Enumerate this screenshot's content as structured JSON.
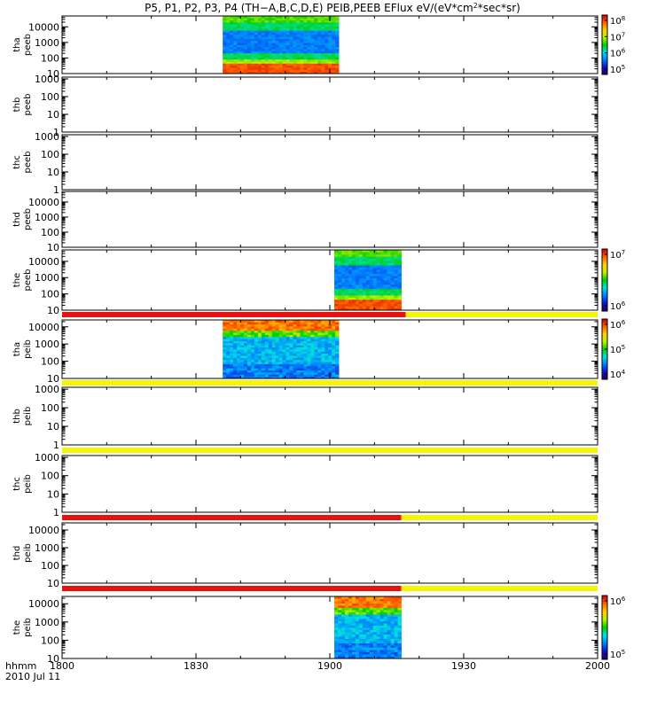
{
  "title_parts": [
    "P5, P1, P2, P3, P4 (TH−A,B,C,D,E) PEIB,PEEB EFlux eV/(eV*cm",
    "2",
    "*sec*sr)"
  ],
  "x_axis": {
    "type": "time",
    "range": [
      "1800",
      "2000"
    ],
    "tick_labels": [
      "1800",
      "1830",
      "1900",
      "1930",
      "2000"
    ],
    "label_top": "hhmm",
    "label_bottom": "2010 Jul 11"
  },
  "colors": {
    "bar_red": "#e81010",
    "bar_yellow": "#f5f500",
    "background": "#ffffff",
    "axis": "#000000"
  },
  "colorbar_stops": [
    "#2a0050",
    "#1010d0",
    "#0080ff",
    "#00e0e0",
    "#00d000",
    "#c0f000",
    "#ffd000",
    "#ff6000",
    "#d00000"
  ],
  "chart_data": [
    {
      "type": "heatmap",
      "name": "tha-peeb",
      "ylabel_lines": [
        "tha",
        "peeb"
      ],
      "ytick_labels": [
        "10000",
        "1000",
        "100",
        "10"
      ],
      "ylim_log": [
        1,
        4.7
      ],
      "y_scale": "log",
      "data_intervals": [
        [
          "1836",
          "1902"
        ]
      ],
      "colorbar": {
        "ticks": [
          {
            "base": "10",
            "exp": "8"
          },
          {
            "base": "10",
            "exp": "7"
          },
          {
            "base": "10",
            "exp": "6"
          },
          {
            "base": "10",
            "exp": "5"
          }
        ]
      }
    },
    {
      "type": "heatmap",
      "name": "thb-peeb",
      "ylabel_lines": [
        "thb",
        "peeb"
      ],
      "ytick_labels": [
        "1000",
        "100",
        "10",
        "1"
      ],
      "ylim_log": [
        0,
        3.1
      ],
      "y_scale": "log",
      "data_intervals": []
    },
    {
      "type": "heatmap",
      "name": "thc-peeb",
      "ylabel_lines": [
        "thc",
        "peeb"
      ],
      "ytick_labels": [
        "1000",
        "100",
        "10",
        "1"
      ],
      "ylim_log": [
        0,
        3.1
      ],
      "y_scale": "log",
      "data_intervals": []
    },
    {
      "type": "heatmap",
      "name": "thd-peeb",
      "ylabel_lines": [
        "thd",
        "peeb"
      ],
      "ytick_labels": [
        "10000",
        "1000",
        "100",
        "10"
      ],
      "ylim_log": [
        1,
        4.7
      ],
      "y_scale": "log",
      "data_intervals": []
    },
    {
      "type": "heatmap",
      "name": "the-peeb",
      "ylabel_lines": [
        "the",
        "peeb"
      ],
      "ytick_labels": [
        "10000",
        "1000",
        "100",
        "10"
      ],
      "ylim_log": [
        1,
        4.7
      ],
      "y_scale": "log",
      "data_intervals": [
        [
          "1901",
          "1916"
        ]
      ],
      "colorbar": {
        "ticks": [
          {
            "base": "10",
            "exp": "7"
          },
          {
            "base": "10",
            "exp": "6"
          }
        ]
      },
      "bar_segments": [
        {
          "from": "1800",
          "to": "1917",
          "color": "red"
        },
        {
          "from": "1917",
          "to": "2000",
          "color": "yellow"
        }
      ]
    },
    {
      "type": "heatmap",
      "name": "tha-peib",
      "ylabel_lines": [
        "tha",
        "peib"
      ],
      "ytick_labels": [
        "10000",
        "1000",
        "100",
        "10"
      ],
      "ylim_log": [
        1,
        4.4
      ],
      "y_scale": "log",
      "data_intervals": [
        [
          "1836",
          "1902"
        ]
      ],
      "colorbar": {
        "ticks": [
          {
            "base": "10",
            "exp": "6"
          },
          {
            "base": "10",
            "exp": "5"
          },
          {
            "base": "10",
            "exp": "4"
          }
        ]
      },
      "bar_segments": [
        {
          "from": "1800",
          "to": "2000",
          "color": "yellow"
        }
      ]
    },
    {
      "type": "heatmap",
      "name": "thb-peib",
      "ylabel_lines": [
        "thb",
        "peib"
      ],
      "ytick_labels": [
        "1000",
        "100",
        "10",
        "1"
      ],
      "ylim_log": [
        0,
        3.1
      ],
      "y_scale": "log",
      "data_intervals": [],
      "bar_segments": [
        {
          "from": "1800",
          "to": "2000",
          "color": "yellow"
        }
      ]
    },
    {
      "type": "heatmap",
      "name": "thc-peib",
      "ylabel_lines": [
        "thc",
        "peib"
      ],
      "ytick_labels": [
        "1000",
        "100",
        "10",
        "1"
      ],
      "ylim_log": [
        0,
        3.1
      ],
      "y_scale": "log",
      "data_intervals": [],
      "bar_segments": [
        {
          "from": "1800",
          "to": "1916",
          "color": "red"
        },
        {
          "from": "1916",
          "to": "2000",
          "color": "yellow"
        }
      ]
    },
    {
      "type": "heatmap",
      "name": "thd-peib",
      "ylabel_lines": [
        "thd",
        "peib"
      ],
      "ytick_labels": [
        "10000",
        "1000",
        "100",
        "10"
      ],
      "ylim_log": [
        1,
        4.4
      ],
      "y_scale": "log",
      "data_intervals": [],
      "bar_segments": [
        {
          "from": "1800",
          "to": "1916",
          "color": "red"
        },
        {
          "from": "1916",
          "to": "2000",
          "color": "yellow"
        }
      ]
    },
    {
      "type": "heatmap",
      "name": "the-peib",
      "ylabel_lines": [
        "the",
        "peib"
      ],
      "ytick_labels": [
        "10000",
        "1000",
        "100",
        "10"
      ],
      "ylim_log": [
        1,
        4.4
      ],
      "y_scale": "log",
      "data_intervals": [
        [
          "1901",
          "1916"
        ]
      ],
      "colorbar": {
        "ticks": [
          {
            "base": "10",
            "exp": "6"
          },
          {
            "base": "10",
            "exp": "5"
          }
        ]
      }
    }
  ]
}
